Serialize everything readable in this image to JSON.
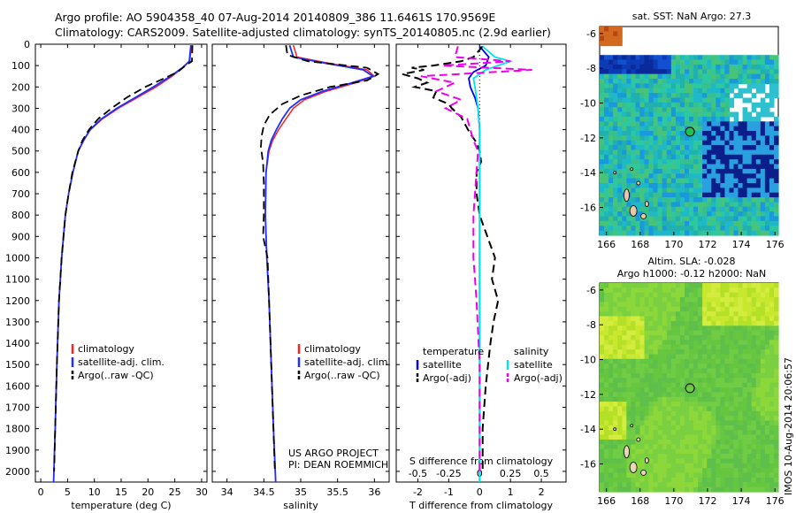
{
  "header": {
    "line1": "Argo profile: AO 5904358_40 07-Aug-2014 20140809_386 11.6461S 170.9569E",
    "line2": "Climatology: CARS2009. Satellite-adjusted climatology: synTS_20140805.nc (2.9d earlier)"
  },
  "y_ticks": [
    "0",
    "100",
    "200",
    "300",
    "400",
    "500",
    "600",
    "700",
    "800",
    "900",
    "1000",
    "1100",
    "1200",
    "1300",
    "1400",
    "1500",
    "1600",
    "1700",
    "1800",
    "1900",
    "2000"
  ],
  "colors": {
    "climatology": "#ff2020",
    "satellite": "#1f2fff",
    "argo": "#000000",
    "t_sat": "#0000ee",
    "s_sat": "#00e5ee",
    "s_argo": "#ee00ee"
  },
  "chart_data": [
    {
      "type": "line",
      "xlabel": "temperature (deg C)",
      "xlim": [
        -1,
        31
      ],
      "ylim": [
        2050,
        0
      ],
      "x_ticks": [
        "0",
        "5",
        "10",
        "15",
        "20",
        "25",
        "30"
      ],
      "legend": [
        "climatology",
        "satellite-adj. clim.",
        "Argo(..raw -QC)"
      ],
      "series": [
        {
          "name": "climatology",
          "depth": [
            5,
            80,
            110,
            150,
            200,
            250,
            300,
            350,
            400,
            450,
            500,
            600,
            700,
            800,
            1000,
            1200,
            1500,
            1800,
            2050
          ],
          "values": [
            28.1,
            27.8,
            26.5,
            24.5,
            21.5,
            18,
            14.5,
            11.5,
            9.3,
            8.0,
            7.0,
            6.0,
            5.2,
            4.6,
            3.9,
            3.4,
            3.0,
            2.7,
            2.4
          ]
        },
        {
          "name": "satellite-adj. clim.",
          "depth": [
            5,
            80,
            110,
            150,
            200,
            250,
            300,
            350,
            400,
            450,
            500,
            600,
            700,
            800,
            1000,
            1200,
            1500,
            1800,
            2050
          ],
          "values": [
            28.0,
            27.7,
            26.4,
            24.2,
            21.0,
            17.6,
            14.2,
            11.3,
            9.2,
            8.0,
            7.0,
            6.0,
            5.2,
            4.6,
            3.9,
            3.4,
            3.0,
            2.7,
            2.4
          ]
        },
        {
          "name": "Argo(..raw -QC)",
          "depth": [
            5,
            80,
            100,
            130,
            160,
            200,
            250,
            300,
            350,
            400,
            450,
            500,
            600,
            700,
            800,
            1000,
            1200,
            1500,
            1800,
            2000
          ],
          "values": [
            28.3,
            28.2,
            27.0,
            25.5,
            23.0,
            19.5,
            16.0,
            13.2,
            10.7,
            9.0,
            7.8,
            7.0,
            5.9,
            5.2,
            4.6,
            3.9,
            3.4,
            3.0,
            2.7,
            2.5
          ]
        }
      ]
    },
    {
      "type": "line",
      "xlabel": "salinity",
      "xlim": [
        33.8,
        36.2
      ],
      "ylim": [
        2050,
        0
      ],
      "x_ticks": [
        "34",
        "34.5",
        "35",
        "35.5",
        "36"
      ],
      "legend": [
        "climatology",
        "satellite-adj. clim.",
        "Argo(..raw -QC)"
      ],
      "annotation": [
        "US ARGO PROJECT",
        "PI: DEAN ROEMMICH"
      ],
      "series": [
        {
          "name": "climatology",
          "depth": [
            5,
            60,
            90,
            120,
            150,
            180,
            220,
            260,
            300,
            350,
            400,
            450,
            500,
            600,
            800,
            1000,
            1200,
            1500,
            1800,
            2050
          ],
          "values": [
            34.9,
            34.95,
            35.4,
            35.9,
            36.0,
            35.75,
            35.35,
            35.05,
            34.9,
            34.8,
            34.7,
            34.62,
            34.57,
            34.53,
            34.52,
            34.54,
            34.57,
            34.6,
            34.63,
            34.66
          ]
        },
        {
          "name": "satellite-adj. clim.",
          "depth": [
            5,
            60,
            90,
            120,
            150,
            180,
            220,
            260,
            300,
            350,
            400,
            450,
            500,
            600,
            800,
            1000,
            1200,
            1500,
            1800,
            2050
          ],
          "values": [
            34.85,
            34.9,
            35.35,
            35.85,
            35.98,
            35.7,
            35.3,
            35.0,
            34.85,
            34.75,
            34.67,
            34.6,
            34.56,
            34.53,
            34.52,
            34.54,
            34.57,
            34.6,
            34.63,
            34.66
          ]
        },
        {
          "name": "Argo(..raw -QC)",
          "depth": [
            5,
            50,
            80,
            110,
            140,
            170,
            200,
            240,
            280,
            330,
            380,
            430,
            480,
            560,
            650,
            800,
            900,
            1000,
            1200,
            1500,
            1800,
            2000
          ],
          "values": [
            34.8,
            34.82,
            35.1,
            35.9,
            36.05,
            35.9,
            35.4,
            35.0,
            34.75,
            34.58,
            34.5,
            34.47,
            34.46,
            34.49,
            34.5,
            34.5,
            34.49,
            34.55,
            34.57,
            34.6,
            34.63,
            34.65
          ]
        }
      ]
    },
    {
      "type": "line",
      "xlabel": "T difference from climatology",
      "xlabel_top": "S difference from climatology",
      "xlim": [
        -2.7,
        2.8
      ],
      "ylim": [
        2050,
        0
      ],
      "x_ticks": [
        "-2",
        "-1",
        "0",
        "1",
        "2"
      ],
      "x_ticks_s": [
        "-0.5",
        "-0.25",
        "0",
        "0.25",
        "0.5"
      ],
      "legend_temperature": [
        "temperature",
        "satellite",
        "Argo(-adj)"
      ],
      "legend_salinity": [
        "salinity",
        "satellite",
        "Argo(-adj)"
      ],
      "series": [
        {
          "name": "satellite",
          "depth": [
            10,
            60,
            100,
            130,
            160,
            200,
            250,
            300,
            400,
            600,
            900,
            1200,
            1600,
            2050
          ],
          "values": [
            0,
            0.3,
            0.2,
            -0.2,
            -0.35,
            -0.3,
            -0.15,
            -0.05,
            0,
            0,
            0,
            0,
            0,
            0
          ]
        },
        {
          "name": "Argo(-adj)",
          "depth": [
            10,
            60,
            80,
            100,
            110,
            120,
            140,
            160,
            180,
            200,
            220,
            250,
            280,
            300,
            340,
            380,
            420,
            460,
            500,
            550,
            600,
            700,
            800,
            900,
            1000,
            1100,
            1200,
            1300,
            1400,
            1600,
            1800,
            2000
          ],
          "values": [
            0.1,
            -0.2,
            -0.6,
            -1.5,
            -2.2,
            -1.8,
            -2.5,
            -2.0,
            -1.7,
            -2.1,
            -1.4,
            -1.5,
            -1.0,
            -0.9,
            -0.6,
            -0.45,
            -0.3,
            -0.1,
            0,
            0.05,
            -0.1,
            -0.1,
            0,
            0.25,
            0.5,
            0.4,
            0.6,
            0.45,
            0.35,
            0.2,
            0.1,
            0.1
          ]
        },
        {
          "name": "s-satellite",
          "depth": [
            10,
            60,
            80,
            100,
            120,
            160,
            200,
            300,
            400,
            600,
            900,
            1200,
            1600,
            2050
          ],
          "values": [
            0.1,
            0.5,
            1.0,
            0.6,
            0.2,
            -0.2,
            -0.15,
            -0.05,
            0,
            0,
            0,
            0,
            0,
            0
          ]
        },
        {
          "name": "s-Argo(-adj)",
          "depth": [
            10,
            60,
            80,
            100,
            120,
            150,
            180,
            220,
            260,
            300,
            350,
            400,
            450,
            500,
            600,
            800,
            900,
            1000,
            1200,
            1500,
            1800,
            2000
          ],
          "values": [
            -0.7,
            -0.8,
            1.0,
            -1.2,
            1.7,
            -1.9,
            -0.8,
            -1.4,
            -0.6,
            -1.1,
            -0.4,
            -0.3,
            -0.2,
            -0.05,
            -0.1,
            -0.2,
            -0.2,
            -0.2,
            -0.1,
            0,
            0,
            0
          ]
        }
      ]
    }
  ],
  "map_sst": {
    "title": "sat. SST: NaN Argo: 27.3",
    "x_ticks": [
      "166",
      "168",
      "170",
      "172",
      "174",
      "176"
    ],
    "y_ticks": [
      "-6",
      "-8",
      "-10",
      "-12",
      "-14",
      "-16"
    ]
  },
  "map_sla": {
    "title_line1": "Altim. SLA: -0.028",
    "title_line2": "Argo h1000: -0.12 h2000: NaN",
    "x_ticks": [
      "166",
      "168",
      "170",
      "172",
      "174",
      "176"
    ],
    "y_ticks": [
      "-6",
      "-8",
      "-10",
      "-12",
      "-14",
      "-16"
    ],
    "stamp": "IMOS 10-Aug-2014 20:06:57"
  },
  "argo_position": {
    "lon": 170.9569,
    "lat": -11.6461
  }
}
